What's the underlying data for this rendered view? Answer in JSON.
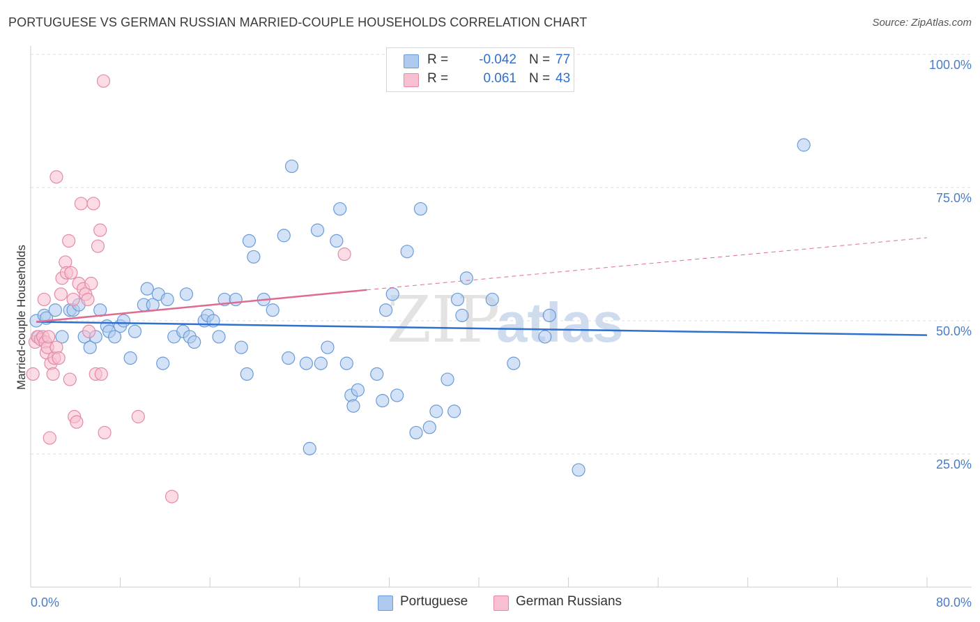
{
  "header": {
    "title": "PORTUGUESE VS GERMAN RUSSIAN MARRIED-COUPLE HOUSEHOLDS CORRELATION CHART",
    "source": "Source: ZipAtlas.com"
  },
  "legend": {
    "rows": [
      {
        "r_label": "R =",
        "r_value": "-0.042",
        "n_label": "N =",
        "n_value": "77"
      },
      {
        "r_label": "R =",
        "r_value": "0.061",
        "n_label": "N =",
        "n_value": "43"
      }
    ]
  },
  "bottom_legend": {
    "items": [
      {
        "label": "Portuguese"
      },
      {
        "label": "German Russians"
      }
    ]
  },
  "watermark": {
    "zip": "ZIP",
    "atlas": "atlas"
  },
  "colors": {
    "blue_fill": "#aecbef",
    "blue_stroke": "#6a9bd9",
    "blue_line": "#2f6fcf",
    "pink_fill": "#f7bfd0",
    "pink_stroke": "#e48aa6",
    "pink_line": "#e06b90",
    "tick_text": "#4a7cc8",
    "grid": "#dddddd"
  },
  "chart_data": {
    "type": "scatter",
    "title": "PORTUGUESE VS GERMAN RUSSIAN MARRIED-COUPLE HOUSEHOLDS CORRELATION CHART",
    "xlabel": "",
    "ylabel": "Married-couple Households",
    "xlim": [
      0,
      80
    ],
    "ylim": [
      0,
      100
    ],
    "x_tick_labels": [
      "0.0%",
      "80.0%"
    ],
    "y_ticks": [
      {
        "value": 100,
        "label": "100.0%"
      },
      {
        "value": 75,
        "label": "75.0%"
      },
      {
        "value": 50,
        "label": "50.0%"
      },
      {
        "value": 25,
        "label": "25.0%"
      }
    ],
    "grid": "horizontal dashed",
    "series": [
      {
        "name": "Portuguese",
        "color": "#aecbef",
        "r": -0.042,
        "n": 77,
        "trend": {
          "x0": 0.5,
          "y0": 49.8,
          "x1": 80,
          "y1": 47.3,
          "style": "solid"
        },
        "points": [
          [
            0.5,
            50
          ],
          [
            0.7,
            47
          ],
          [
            1.2,
            51
          ],
          [
            1.4,
            50.5
          ],
          [
            2.2,
            52
          ],
          [
            2.8,
            47
          ],
          [
            3.5,
            52
          ],
          [
            3.8,
            52
          ],
          [
            4.3,
            53
          ],
          [
            4.8,
            47
          ],
          [
            5.3,
            45
          ],
          [
            5.8,
            47
          ],
          [
            6.2,
            52
          ],
          [
            6.8,
            49
          ],
          [
            7.0,
            48
          ],
          [
            7.5,
            47
          ],
          [
            8.0,
            49
          ],
          [
            8.3,
            50
          ],
          [
            8.9,
            43
          ],
          [
            9.3,
            48
          ],
          [
            10.1,
            53
          ],
          [
            10.4,
            56
          ],
          [
            10.9,
            53
          ],
          [
            11.4,
            55
          ],
          [
            11.8,
            42
          ],
          [
            12.2,
            54
          ],
          [
            12.8,
            47
          ],
          [
            13.6,
            48
          ],
          [
            13.9,
            55
          ],
          [
            14.2,
            47
          ],
          [
            14.6,
            46
          ],
          [
            15.5,
            50
          ],
          [
            15.8,
            51
          ],
          [
            16.3,
            50
          ],
          [
            16.8,
            47
          ],
          [
            17.3,
            54
          ],
          [
            18.3,
            54
          ],
          [
            18.8,
            45
          ],
          [
            19.3,
            40
          ],
          [
            19.5,
            65
          ],
          [
            19.9,
            62
          ],
          [
            20.8,
            54
          ],
          [
            21.6,
            52
          ],
          [
            22.6,
            66
          ],
          [
            23.0,
            43
          ],
          [
            23.3,
            79
          ],
          [
            24.6,
            42
          ],
          [
            24.9,
            26
          ],
          [
            25.6,
            67
          ],
          [
            25.9,
            42
          ],
          [
            26.5,
            45
          ],
          [
            27.3,
            65
          ],
          [
            27.6,
            71
          ],
          [
            28.2,
            42
          ],
          [
            28.6,
            36
          ],
          [
            28.8,
            34
          ],
          [
            29.2,
            37
          ],
          [
            30.9,
            40
          ],
          [
            31.4,
            35
          ],
          [
            31.7,
            52
          ],
          [
            32.3,
            55
          ],
          [
            32.7,
            36
          ],
          [
            33.6,
            63
          ],
          [
            34.4,
            29
          ],
          [
            34.8,
            71
          ],
          [
            35.6,
            30
          ],
          [
            36.2,
            33
          ],
          [
            37.2,
            39
          ],
          [
            37.8,
            33
          ],
          [
            38.1,
            54
          ],
          [
            38.5,
            51
          ],
          [
            38.9,
            58
          ],
          [
            41.2,
            54
          ],
          [
            43.1,
            42
          ],
          [
            45.9,
            47
          ],
          [
            46.3,
            51
          ],
          [
            48.9,
            22
          ],
          [
            69.0,
            83
          ]
        ]
      },
      {
        "name": "German Russians",
        "color": "#f7bfd0",
        "r": 0.061,
        "n": 43,
        "trend": {
          "x0": 0.5,
          "y0": 49.8,
          "x1": 30.0,
          "y1": 55.8,
          "dash_to_x": 80,
          "dash_to_y": 65.6,
          "style": "solid then dashed"
        },
        "points": [
          [
            0.2,
            40
          ],
          [
            0.4,
            46
          ],
          [
            0.6,
            47
          ],
          [
            0.9,
            46.5
          ],
          [
            1.1,
            47
          ],
          [
            1.2,
            54
          ],
          [
            1.3,
            46
          ],
          [
            1.4,
            44
          ],
          [
            1.5,
            45
          ],
          [
            1.6,
            47
          ],
          [
            1.7,
            28
          ],
          [
            1.8,
            42
          ],
          [
            2.0,
            40
          ],
          [
            2.1,
            43
          ],
          [
            2.3,
            45
          ],
          [
            2.5,
            43
          ],
          [
            2.7,
            55
          ],
          [
            2.8,
            58
          ],
          [
            3.1,
            61
          ],
          [
            3.2,
            59
          ],
          [
            3.4,
            65
          ],
          [
            3.5,
            39
          ],
          [
            3.6,
            59
          ],
          [
            3.8,
            54
          ],
          [
            3.9,
            32
          ],
          [
            4.1,
            31
          ],
          [
            4.3,
            57
          ],
          [
            4.5,
            72
          ],
          [
            4.7,
            56
          ],
          [
            4.9,
            55
          ],
          [
            5.1,
            54
          ],
          [
            5.2,
            48
          ],
          [
            5.4,
            57
          ],
          [
            5.6,
            72
          ],
          [
            5.8,
            40
          ],
          [
            6.0,
            64
          ],
          [
            6.2,
            67
          ],
          [
            6.3,
            40
          ],
          [
            6.5,
            95
          ],
          [
            6.6,
            29
          ],
          [
            2.3,
            77
          ],
          [
            9.6,
            32
          ],
          [
            12.6,
            17
          ],
          [
            28.0,
            62.5
          ]
        ]
      }
    ]
  }
}
